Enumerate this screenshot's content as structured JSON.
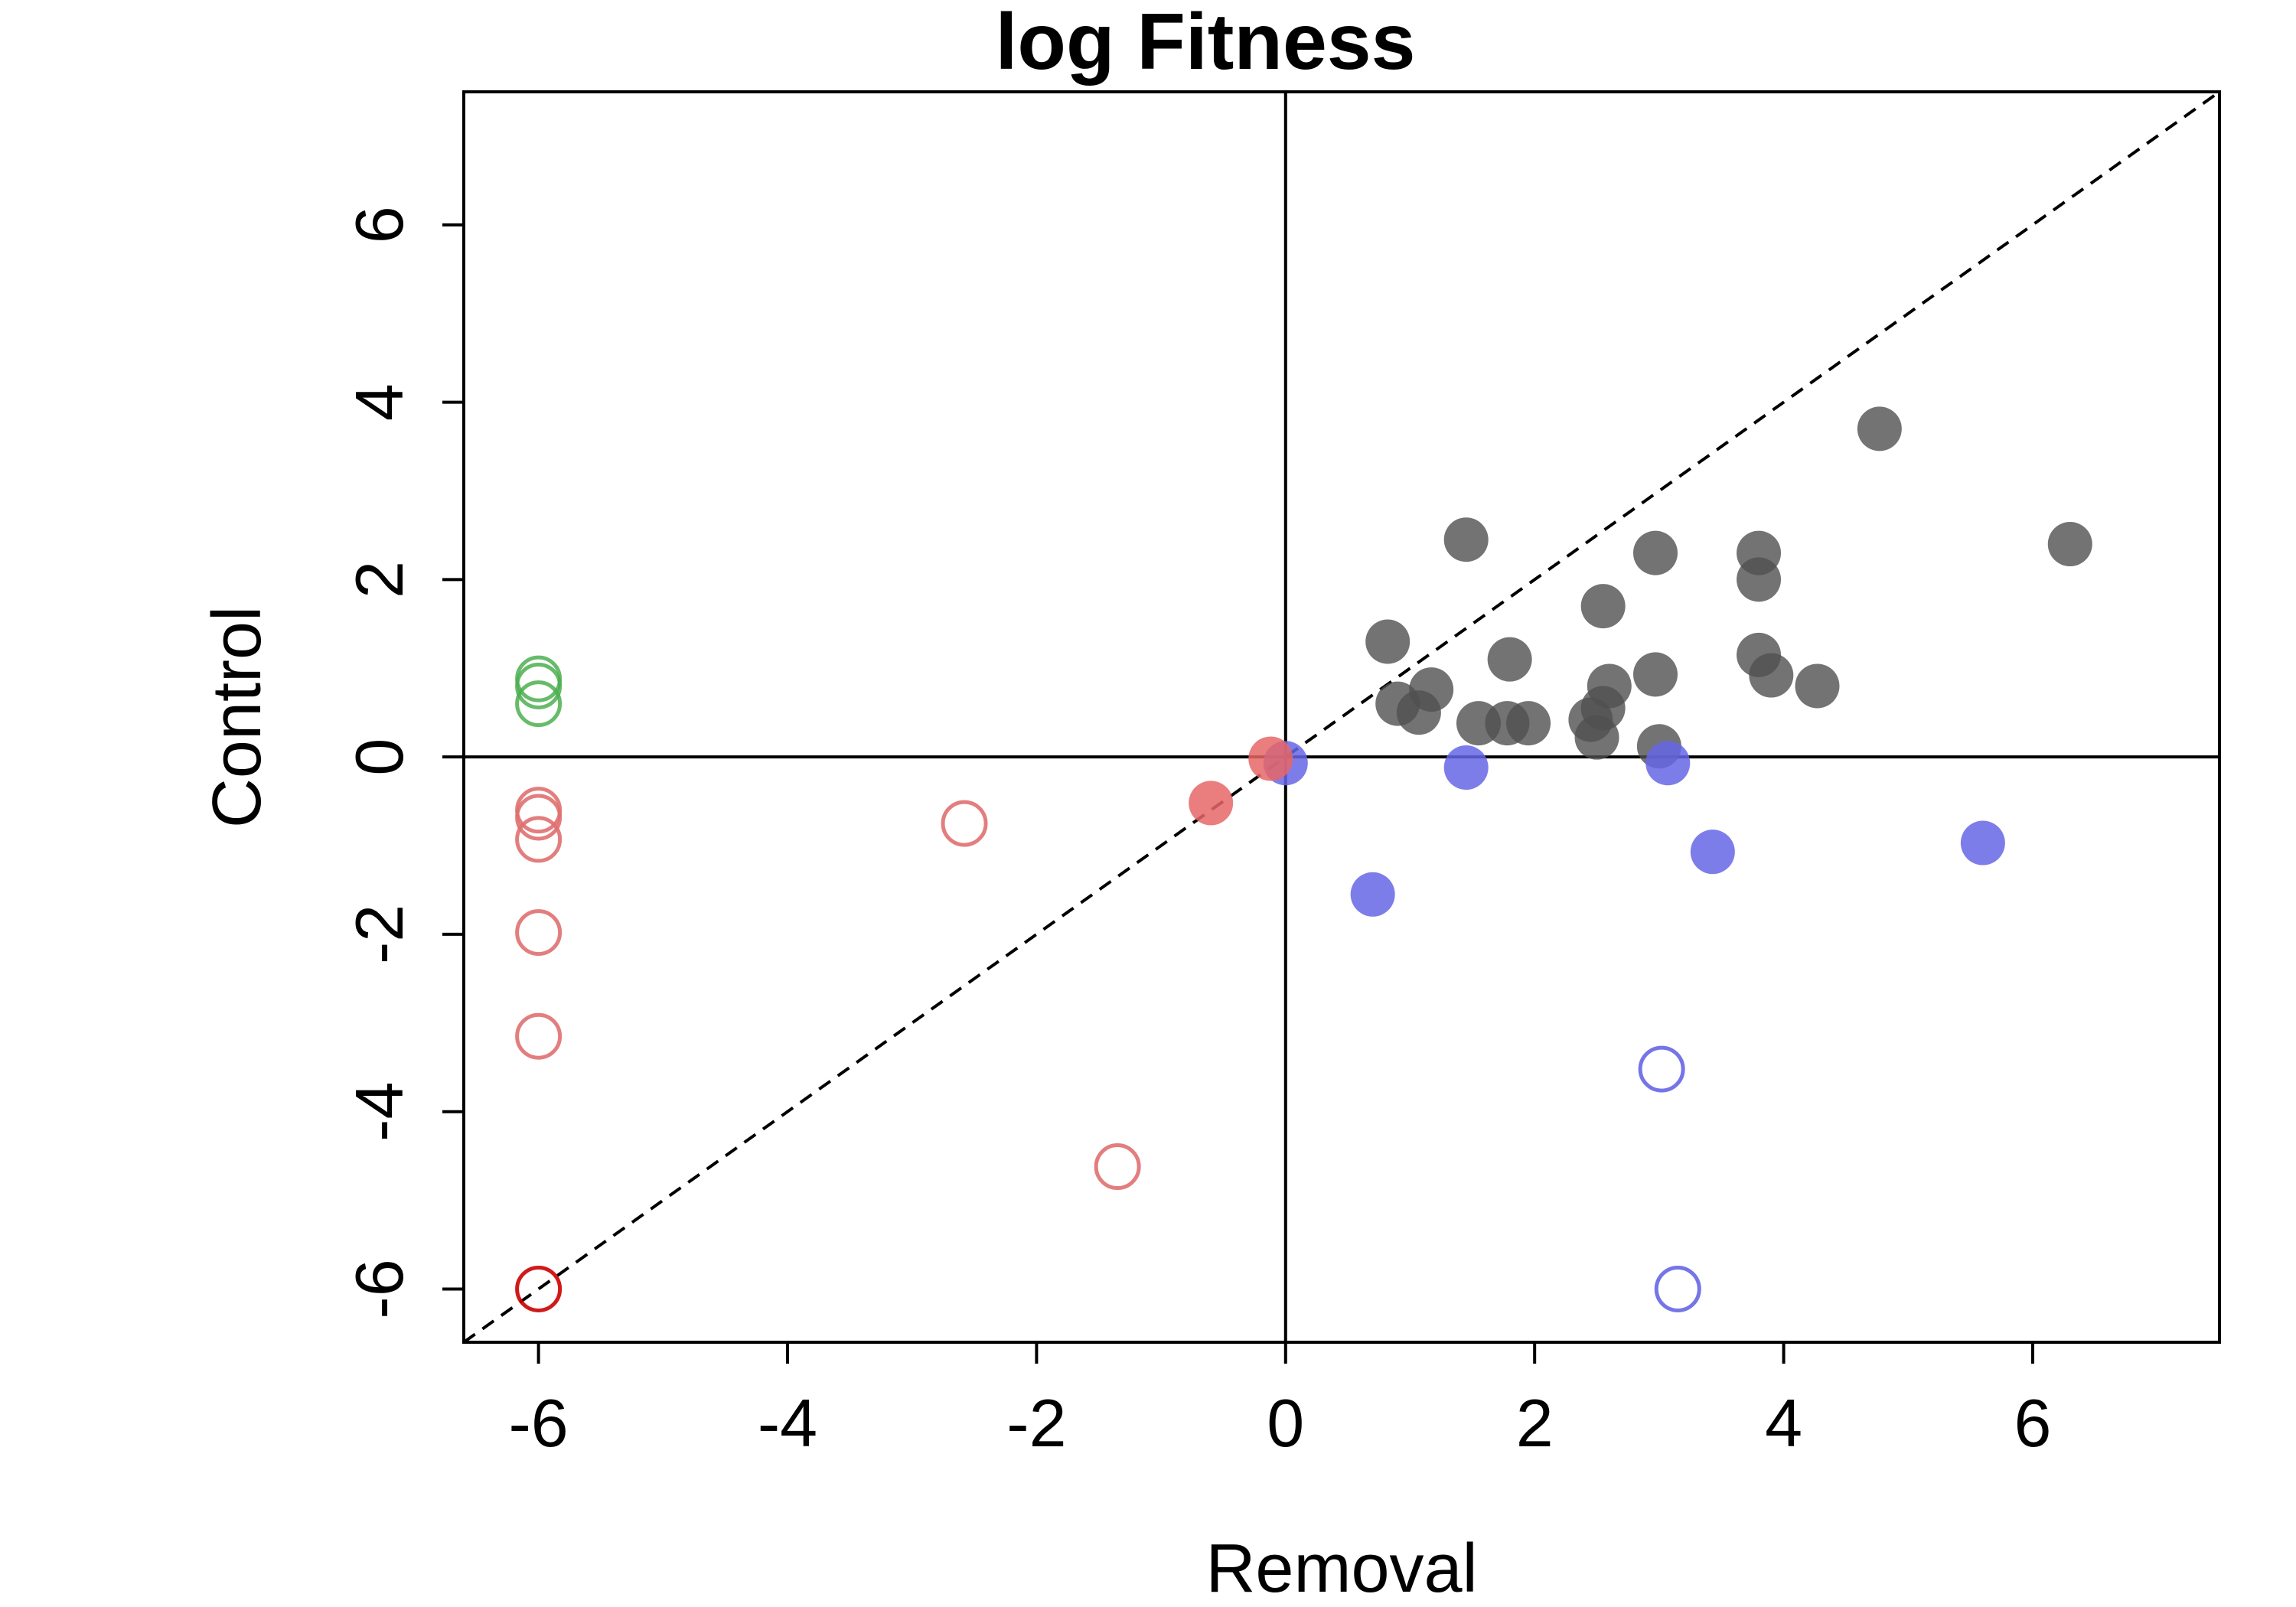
{
  "chart_data": {
    "type": "scatter",
    "title": "log Fitness",
    "xlabel": "Removal",
    "ylabel": "Control",
    "xlim": [
      -6.6,
      7.5
    ],
    "ylim": [
      -6.6,
      7.5
    ],
    "xticks": [
      -6,
      -4,
      -2,
      0,
      2,
      4,
      6
    ],
    "yticks": [
      -6,
      -4,
      -2,
      0,
      2,
      4,
      6
    ],
    "reference_lines": [
      "x = 0",
      "y = 0",
      "y = x (dashed)"
    ],
    "legend": "none",
    "grid": false,
    "series": [
      {
        "color": "#505050",
        "marker": "filled-circle",
        "opacity": 0.8,
        "points": [
          [
            1.45,
            2.45
          ],
          [
            0.82,
            1.3
          ],
          [
            0.9,
            0.6
          ],
          [
            1.07,
            0.5
          ],
          [
            1.17,
            0.76
          ],
          [
            1.55,
            0.38
          ],
          [
            1.78,
            0.38
          ],
          [
            1.8,
            1.1
          ],
          [
            1.95,
            0.38
          ],
          [
            2.45,
            0.42
          ],
          [
            2.5,
            0.22
          ],
          [
            2.55,
            0.55
          ],
          [
            2.55,
            1.7
          ],
          [
            2.6,
            0.8
          ],
          [
            2.97,
            2.3
          ],
          [
            2.97,
            0.93
          ],
          [
            3.0,
            0.12
          ],
          [
            3.8,
            2.3
          ],
          [
            3.8,
            2.0
          ],
          [
            3.8,
            1.15
          ],
          [
            3.9,
            0.92
          ],
          [
            4.27,
            0.8
          ],
          [
            4.77,
            3.7
          ],
          [
            6.3,
            2.4
          ]
        ]
      },
      {
        "color": "#6666e6",
        "marker": "filled-circle",
        "opacity": 0.85,
        "points": [
          [
            0.0,
            -0.07
          ],
          [
            0.7,
            -1.55
          ],
          [
            1.45,
            -0.12
          ],
          [
            3.07,
            -0.07
          ],
          [
            3.43,
            -1.07
          ],
          [
            5.6,
            -0.97
          ]
        ]
      },
      {
        "color": "#6666e6",
        "marker": "open-circle",
        "opacity": 0.9,
        "points": [
          [
            3.02,
            -3.52
          ],
          [
            3.15,
            -6.0
          ]
        ]
      },
      {
        "color": "#e66666",
        "marker": "filled-circle",
        "opacity": 0.85,
        "points": [
          [
            -0.6,
            -0.52
          ],
          [
            -0.12,
            -0.02
          ]
        ]
      },
      {
        "color": "#e07070",
        "marker": "open-circle",
        "opacity": 0.9,
        "points": [
          [
            -6.0,
            -0.6
          ],
          [
            -6.0,
            -0.68
          ],
          [
            -6.0,
            -0.93
          ],
          [
            -6.0,
            -1.98
          ],
          [
            -6.0,
            -3.15
          ],
          [
            -2.58,
            -0.75
          ],
          [
            -1.35,
            -4.62
          ]
        ]
      },
      {
        "color": "#cc0000",
        "marker": "open-circle",
        "opacity": 0.9,
        "points": [
          [
            -6.0,
            -6.0
          ]
        ]
      },
      {
        "color": "#4caf50",
        "marker": "open-circle",
        "opacity": 0.85,
        "points": [
          [
            -6.0,
            0.88
          ],
          [
            -6.0,
            0.8
          ],
          [
            -6.0,
            0.6
          ]
        ]
      }
    ]
  }
}
